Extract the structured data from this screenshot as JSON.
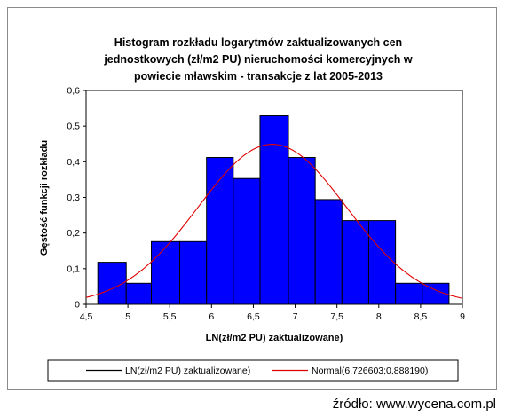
{
  "chart_data": {
    "type": "bar",
    "title_lines": [
      "Histogram rozkładu logarytmów zaktualizowanych cen",
      "jednostkowych (zł/m2 PU) nieruchomości komercyjnych w",
      "powiecie mławskim  - transakcje z lat 2005-2013"
    ],
    "xlabel": "LN(zł/m2 PU) zaktualizowane)",
    "ylabel": "Gęstość funkcji rozkładu",
    "xlim": [
      4.5,
      9
    ],
    "ylim": [
      0,
      0.6
    ],
    "x_ticks": [
      4.5,
      5,
      5.5,
      6,
      6.5,
      7,
      7.5,
      8,
      8.5,
      9
    ],
    "x_tick_labels": [
      "4,5",
      "5",
      "5,5",
      "6",
      "6,5",
      "7",
      "7,5",
      "8",
      "8,5",
      "9"
    ],
    "y_ticks": [
      0,
      0.1,
      0.2,
      0.3,
      0.4,
      0.5,
      0.6
    ],
    "y_tick_labels": [
      "0",
      "0,1",
      "0,2",
      "0,3",
      "0,4",
      "0,5",
      "0,6"
    ],
    "bins": [
      {
        "start": 4.64,
        "end": 4.98,
        "value": 0.118
      },
      {
        "start": 4.98,
        "end": 5.28,
        "value": 0.059
      },
      {
        "start": 5.28,
        "end": 5.62,
        "value": 0.176
      },
      {
        "start": 5.62,
        "end": 5.94,
        "value": 0.176
      },
      {
        "start": 5.94,
        "end": 6.26,
        "value": 0.412
      },
      {
        "start": 6.26,
        "end": 6.58,
        "value": 0.353
      },
      {
        "start": 6.58,
        "end": 6.92,
        "value": 0.529
      },
      {
        "start": 6.92,
        "end": 7.24,
        "value": 0.412
      },
      {
        "start": 7.24,
        "end": 7.56,
        "value": 0.294
      },
      {
        "start": 7.56,
        "end": 7.88,
        "value": 0.235
      },
      {
        "start": 7.88,
        "end": 8.2,
        "value": 0.235
      },
      {
        "start": 8.2,
        "end": 8.52,
        "value": 0.059
      },
      {
        "start": 8.52,
        "end": 8.84,
        "value": 0.059
      }
    ],
    "normal_curve": {
      "mean": 6.726603,
      "sd": 0.88819,
      "color": "#e00000"
    },
    "bar_color": "#0000ff",
    "bar_edge_color": "#000000",
    "grid": false,
    "legend_position": "bottom",
    "legend": [
      {
        "label": "LN(zł/m2 PU) zaktualizowane)",
        "color": "#000000"
      },
      {
        "label": "Normal(6,726603;0,888190)",
        "color": "#e00000"
      }
    ]
  },
  "source_text": "źródło: www.wycena.com.pl"
}
